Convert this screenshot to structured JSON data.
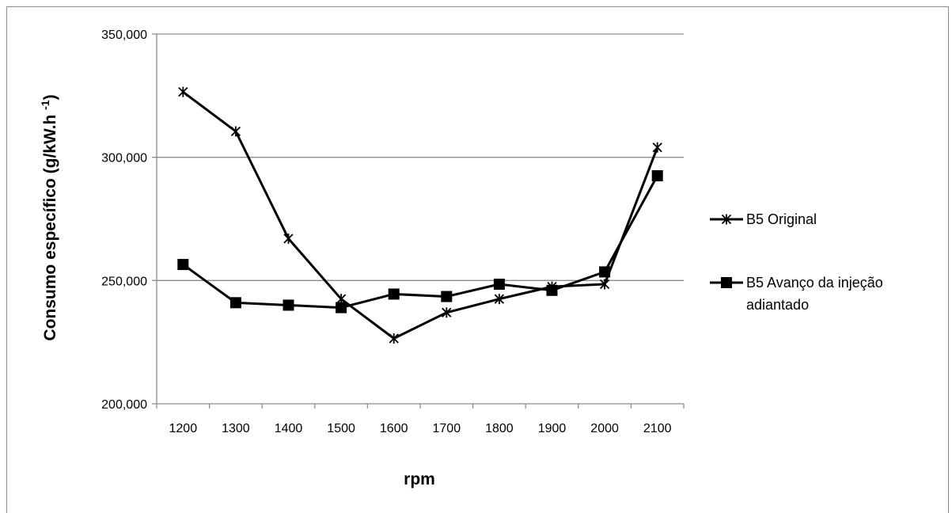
{
  "chart_data": {
    "type": "line",
    "xlabel": "rpm",
    "ylabel": "Consumo específico (g/kW.h ",
    "ylabel_sup": "-1",
    "ylabel_close": ")",
    "categories": [
      "1200",
      "1300",
      "1400",
      "1500",
      "1600",
      "1700",
      "1800",
      "1900",
      "2000",
      "2100"
    ],
    "ylim": [
      200,
      350
    ],
    "yticks": [
      200,
      250,
      300,
      350
    ],
    "ytick_labels": [
      "200,000",
      "250,000",
      "300,000",
      "350,000"
    ],
    "grid": "horizontal",
    "legend_position": "right",
    "series": [
      {
        "name": "B5 Original",
        "marker": "asterisk",
        "color": "#000000",
        "values": [
          326.5,
          310.5,
          267,
          242.5,
          226.5,
          237,
          242.5,
          247.5,
          248.5,
          304
        ]
      },
      {
        "name": "B5 Avanço da injeção adiantado",
        "name_lines": [
          "B5 Avanço da injeção",
          "adiantado"
        ],
        "marker": "square",
        "color": "#000000",
        "values": [
          256.5,
          241,
          240,
          239,
          244.5,
          243.5,
          248.5,
          246,
          253.5,
          292.5
        ]
      }
    ]
  }
}
